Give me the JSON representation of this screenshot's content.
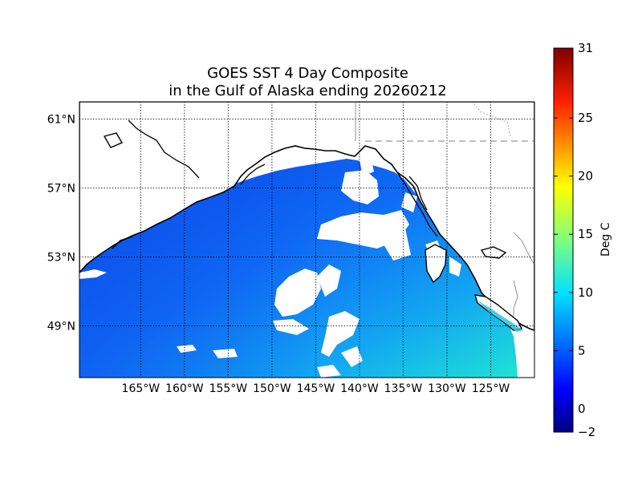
{
  "title": {
    "line1": "GOES SST 4 Day Composite",
    "line2": "in the Gulf of Alaska ending 20260212"
  },
  "map": {
    "lon_range": [
      -172,
      -120
    ],
    "lat_range": [
      46,
      62
    ],
    "lon_ticks": [
      {
        "value": -165,
        "label": "165°W"
      },
      {
        "value": -160,
        "label": "160°W"
      },
      {
        "value": -155,
        "label": "155°W"
      },
      {
        "value": -150,
        "label": "150°W"
      },
      {
        "value": -145,
        "label": "145°W"
      },
      {
        "value": -140,
        "label": "140°W"
      },
      {
        "value": -135,
        "label": "135°W"
      },
      {
        "value": -130,
        "label": "130°W"
      },
      {
        "value": -125,
        "label": "125°W"
      }
    ],
    "lat_ticks": [
      {
        "value": 61,
        "label": "61°N"
      },
      {
        "value": 57,
        "label": "57°N"
      },
      {
        "value": 53,
        "label": "53°N"
      },
      {
        "value": 49,
        "label": "49°N"
      }
    ],
    "graticule": "dotted",
    "land_color": "#ffffff",
    "coastline_color": "#000000",
    "no_data_color": "#ffffff"
  },
  "colorbar": {
    "label": "Deg C",
    "range": [
      -2,
      31
    ],
    "ticks": [
      {
        "value": -2,
        "label": "−2"
      },
      {
        "value": 0,
        "label": "0"
      },
      {
        "value": 5,
        "label": "5"
      },
      {
        "value": 10,
        "label": "10"
      },
      {
        "value": 15,
        "label": "15"
      },
      {
        "value": 20,
        "label": "20"
      },
      {
        "value": 25,
        "label": "25"
      },
      {
        "value": 31,
        "label": "31"
      }
    ],
    "colormap": "jet",
    "colors": [
      "#00007f",
      "#0000ff",
      "#007fff",
      "#00ffff",
      "#7fff7f",
      "#ffff00",
      "#ff7f00",
      "#ff0000",
      "#7f0000"
    ]
  }
}
